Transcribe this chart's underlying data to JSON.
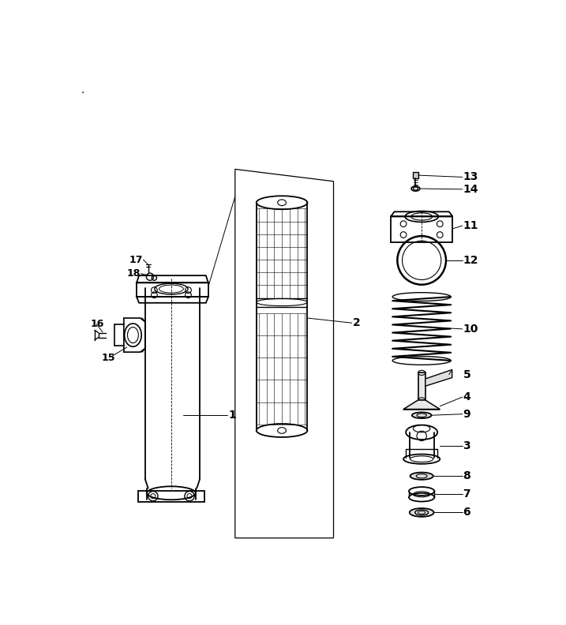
{
  "bg_color": "#ffffff",
  "line_color": "#000000",
  "fig_width": 7.17,
  "fig_height": 7.92,
  "dpi": 100
}
